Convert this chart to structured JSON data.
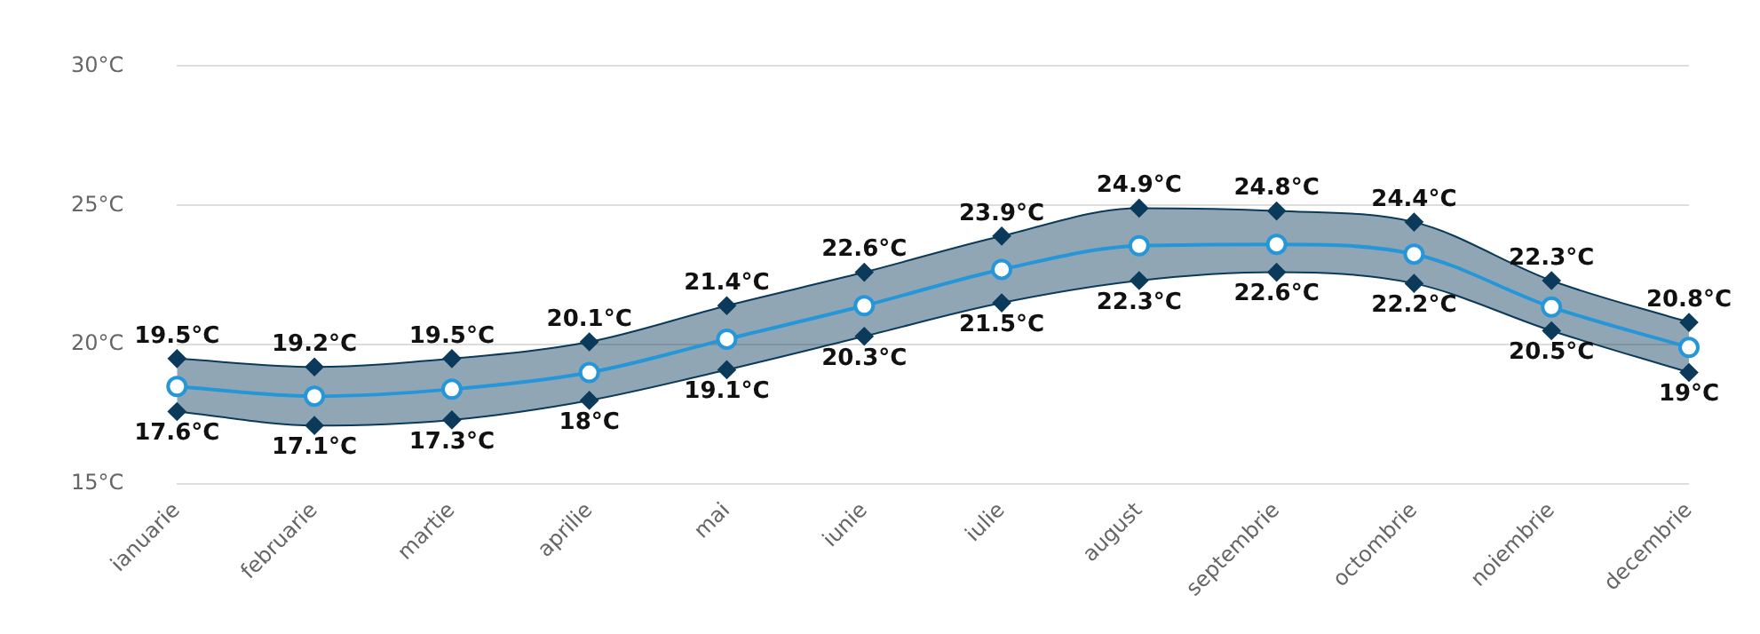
{
  "chart_data": {
    "type": "line",
    "categories": [
      "ianuarie",
      "februarie",
      "martie",
      "aprilie",
      "mai",
      "iunie",
      "iulie",
      "august",
      "septembrie",
      "octombrie",
      "noiembrie",
      "decembrie"
    ],
    "series": [
      {
        "color": "#0b3a5a",
        "marker": "diamond",
        "values": [
          19.5,
          19.2,
          19.5,
          20.1,
          21.4,
          22.6,
          23.9,
          24.9,
          24.8,
          24.4,
          22.3,
          20.8
        ],
        "value_labels": [
          "19.5°C",
          "19.2°C",
          "19.5°C",
          "20.1°C",
          "21.4°C",
          "22.6°C",
          "23.9°C",
          "24.9°C",
          "24.8°C",
          "24.4°C",
          "22.3°C",
          "20.8°C"
        ]
      },
      {
        "color": "#0b3a5a",
        "marker": "diamond",
        "values": [
          17.6,
          17.1,
          17.3,
          18,
          19.1,
          20.3,
          21.5,
          22.3,
          22.6,
          22.2,
          20.5,
          19
        ],
        "value_labels": [
          "17.6°C",
          "17.1°C",
          "17.3°C",
          "18°C",
          "19.1°C",
          "20.3°C",
          "21.5°C",
          "22.3°C",
          "22.6°C",
          "22.2°C",
          "20.5°C",
          "19°C"
        ]
      },
      {
        "color": "#2596d8",
        "marker": "circle",
        "values": [
          18.5,
          18.15,
          18.4,
          19.0,
          20.2,
          21.4,
          22.7,
          23.55,
          23.6,
          23.25,
          21.35,
          19.9
        ]
      }
    ],
    "ylim": [
      15,
      30
    ],
    "yticks": [
      {
        "value": 15,
        "label": "15°C"
      },
      {
        "value": 20,
        "label": "20°C"
      },
      {
        "value": 25,
        "label": "25°C"
      },
      {
        "value": 30,
        "label": "30°C"
      }
    ],
    "grid": "y",
    "legend": false
  }
}
